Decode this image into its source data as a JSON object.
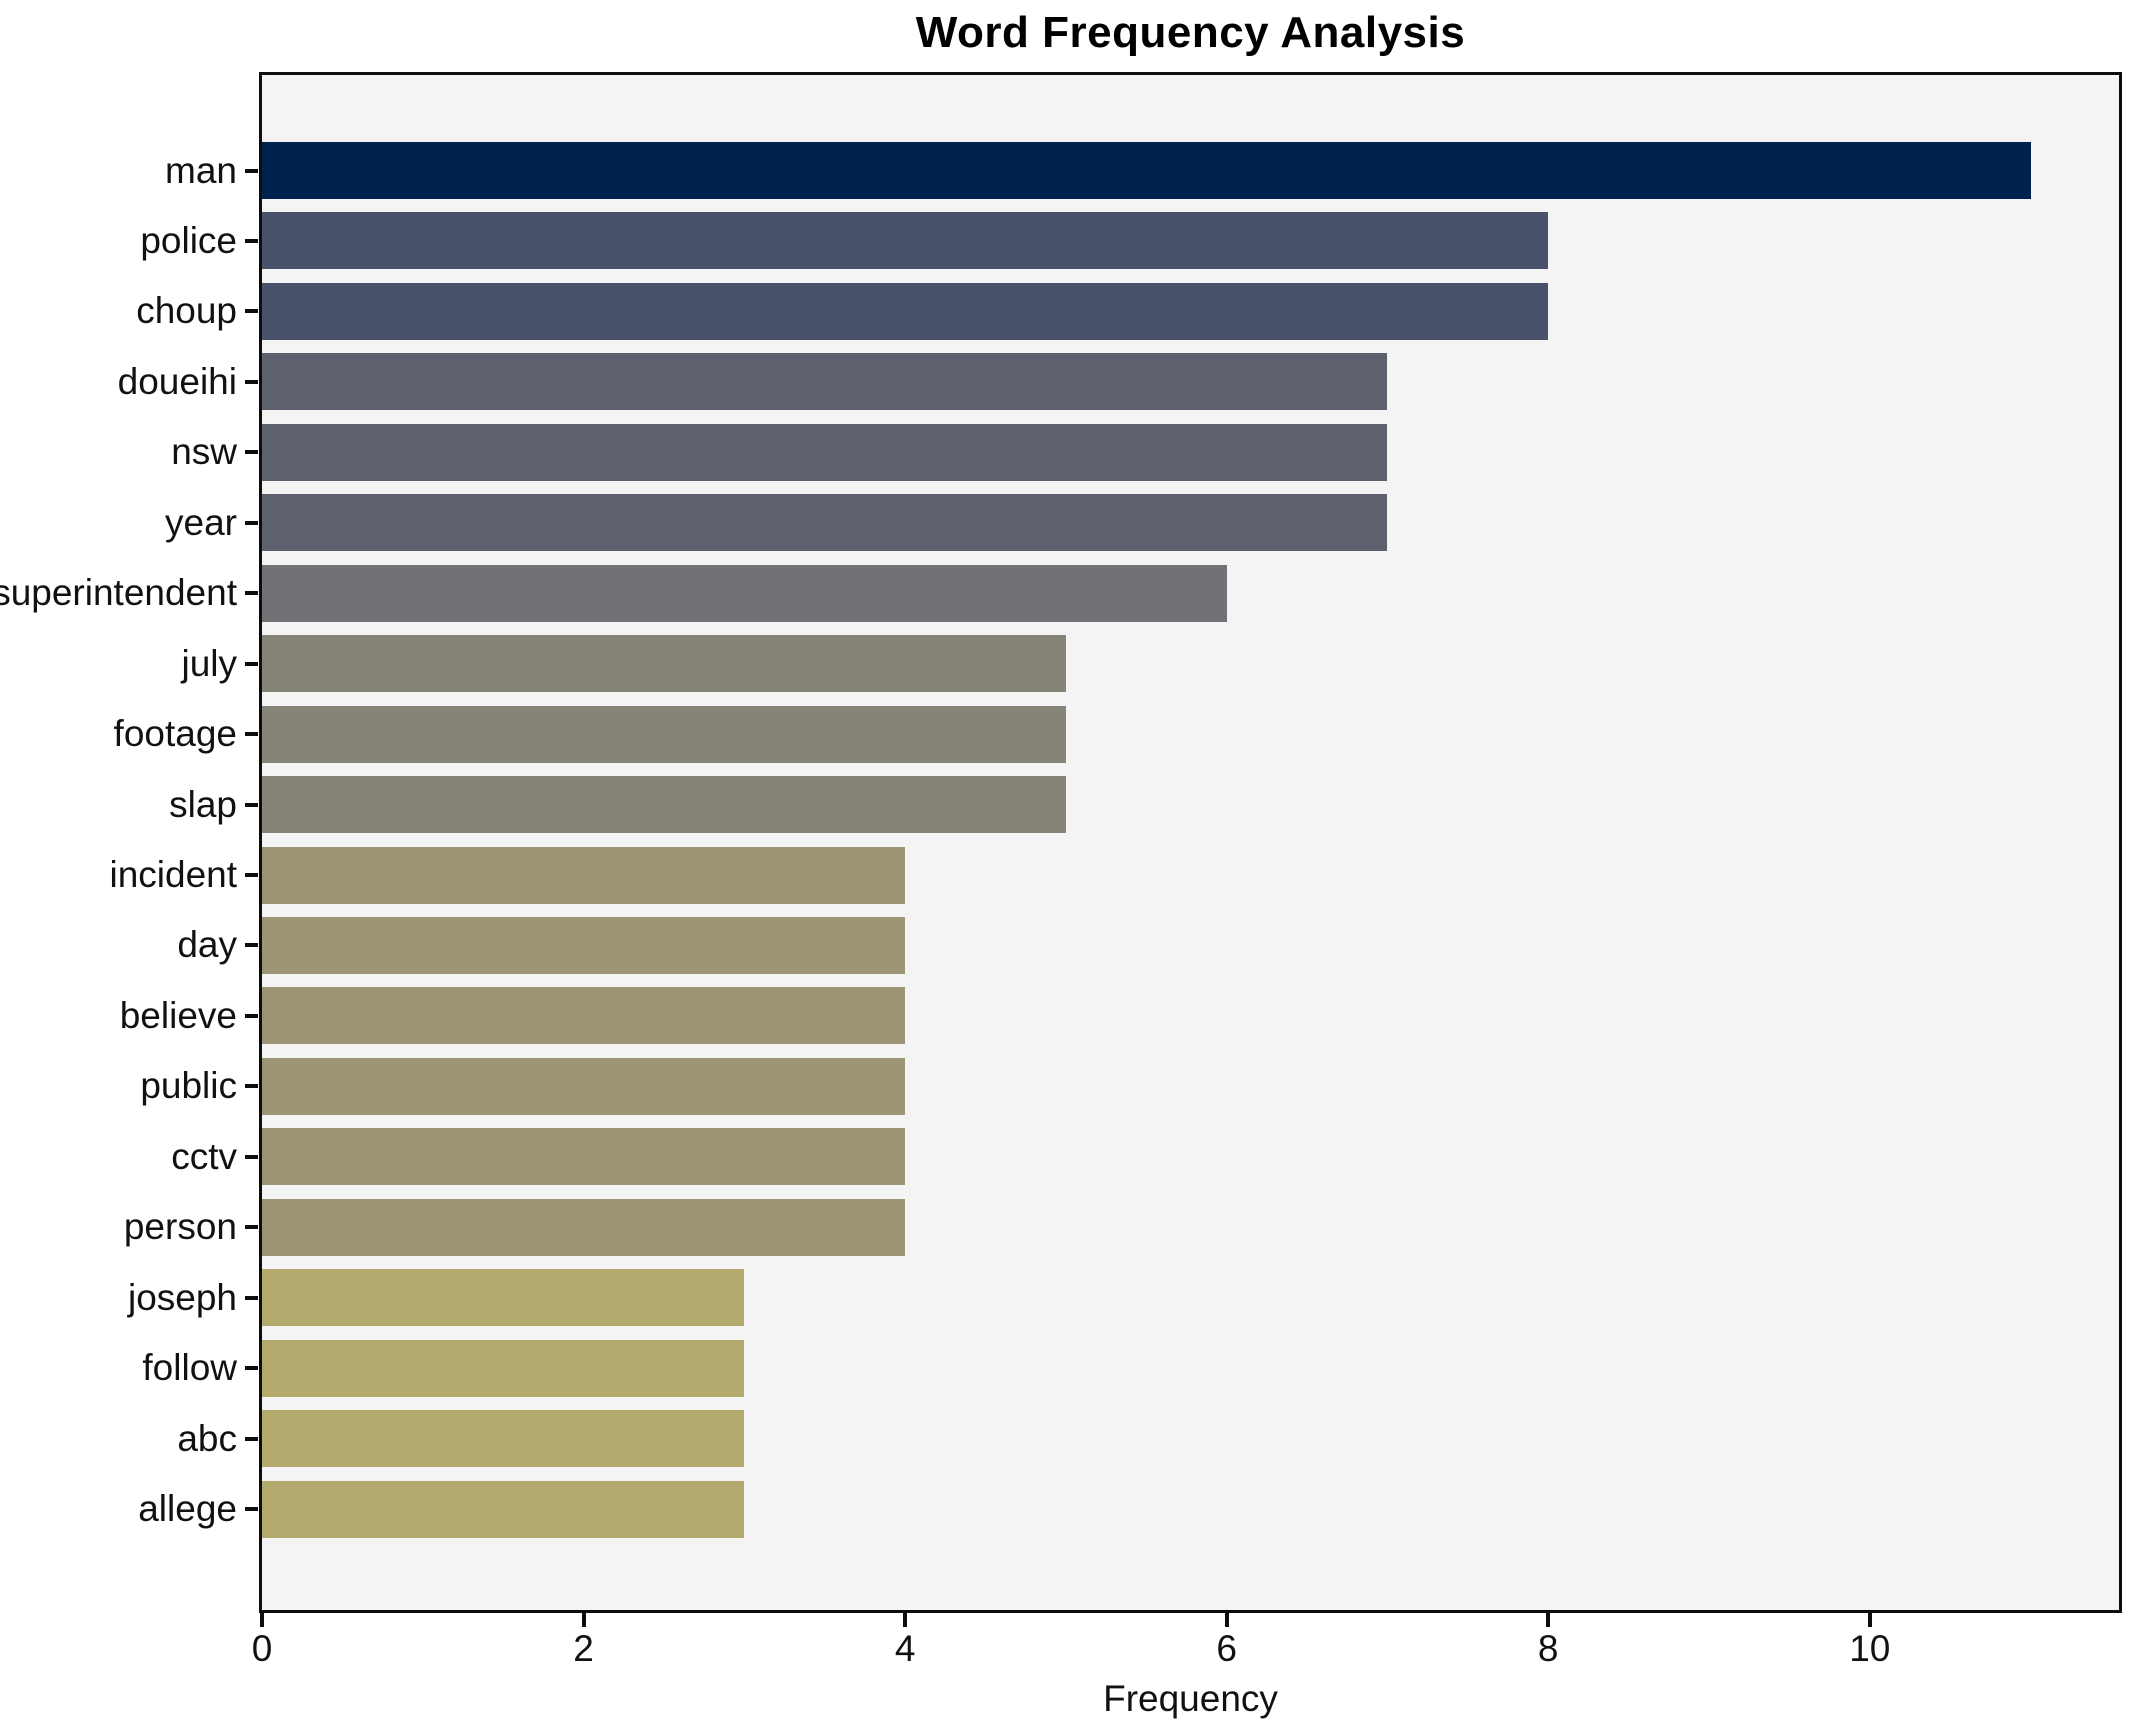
{
  "chart_data": {
    "type": "bar",
    "orientation": "horizontal",
    "title": "Word Frequency Analysis",
    "xlabel": "Frequency",
    "ylabel": "",
    "categories": [
      "man",
      "police",
      "choup",
      "doueihi",
      "nsw",
      "year",
      "superintendent",
      "july",
      "footage",
      "slap",
      "incident",
      "day",
      "believe",
      "public",
      "cctv",
      "person",
      "joseph",
      "follow",
      "abc",
      "allege"
    ],
    "values": [
      11,
      8,
      8,
      7,
      7,
      7,
      6,
      5,
      5,
      5,
      4,
      4,
      4,
      4,
      4,
      4,
      3,
      3,
      3,
      3
    ],
    "bar_colors": [
      "#00234e",
      "#4a526b",
      "#4a526b",
      "#5e616e",
      "#5e616e",
      "#5e616e",
      "#717275",
      "#868476",
      "#868476",
      "#868476",
      "#9e9576",
      "#9e9576",
      "#9e9576",
      "#9e9576",
      "#9e9576",
      "#9e9576",
      "#b3aa6e",
      "#b3aa6e",
      "#b3aa6e",
      "#b3aa6e"
    ],
    "xticks": [
      0,
      2,
      4,
      6,
      8,
      10
    ],
    "xlim": [
      0,
      11.55
    ],
    "grid": false,
    "legend": false,
    "plot_background": "#f5f4f5",
    "spine_color": "#0d0d0d"
  }
}
